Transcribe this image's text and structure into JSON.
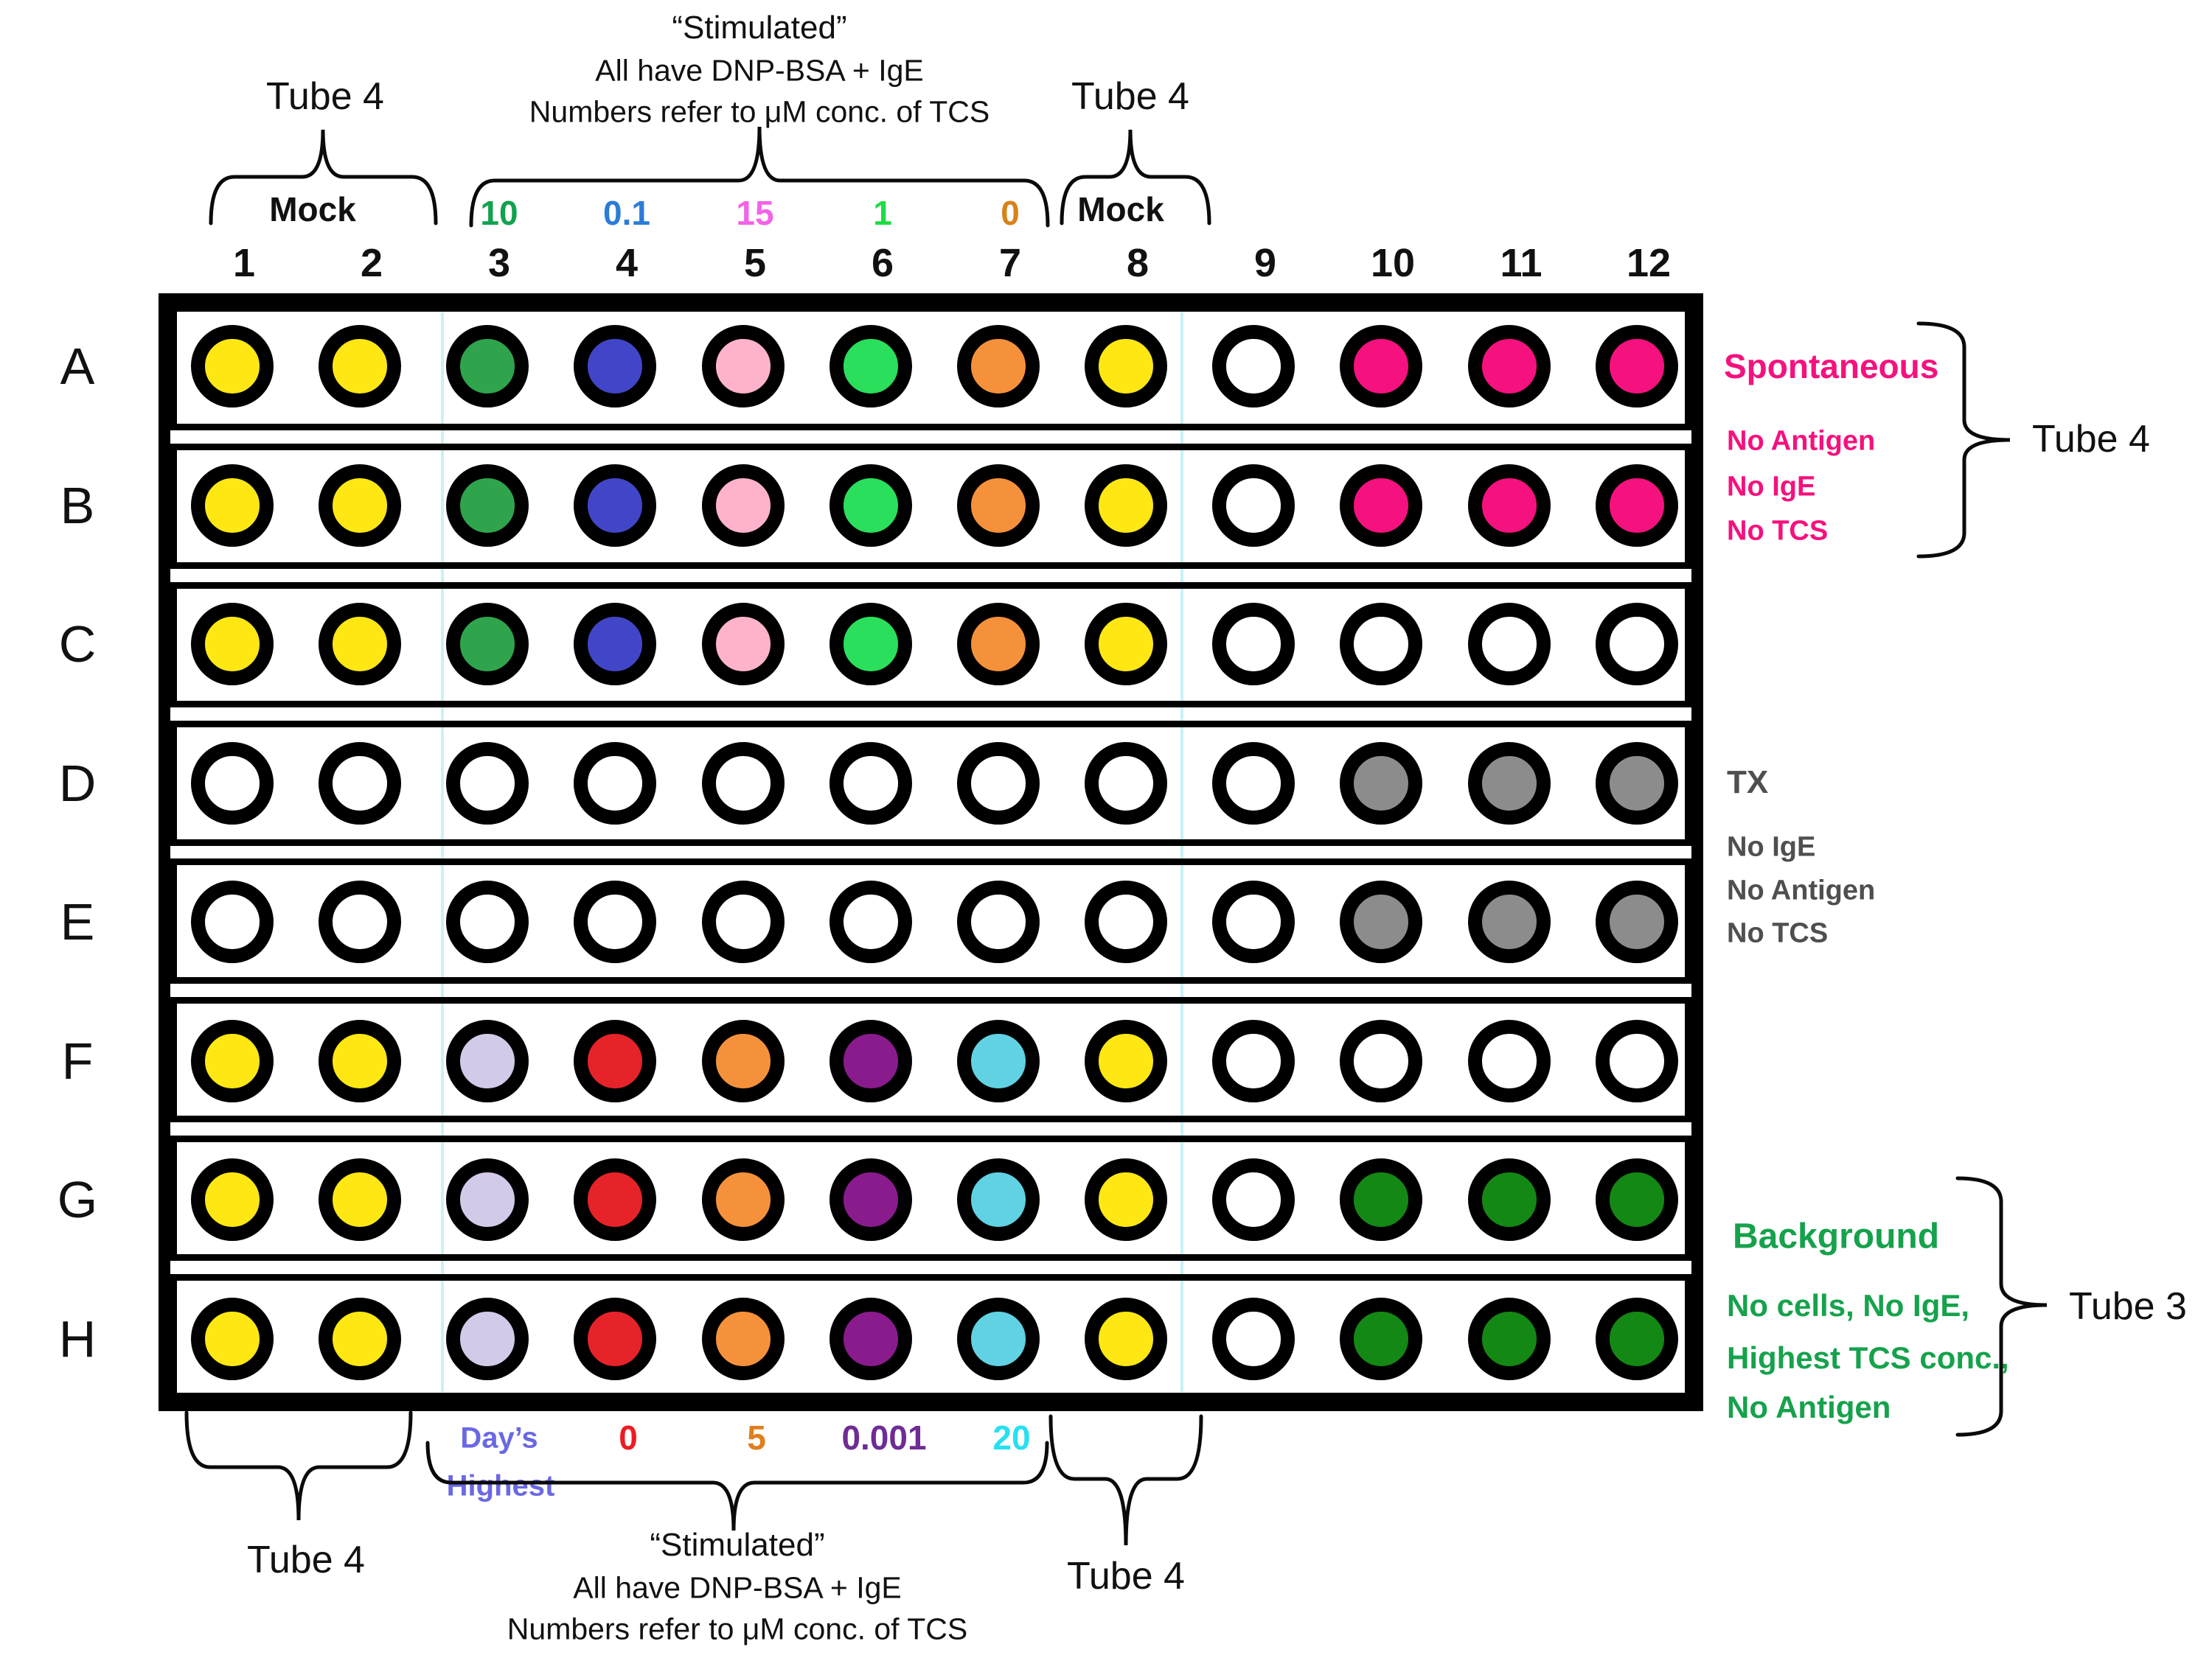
{
  "palette": {
    "yellow": "#FFE714",
    "green": "#2FA44D",
    "blue": "#4146C8",
    "pink": "#FFB3CB",
    "bright_green": "#2ADF5B",
    "orange": "#F6913B",
    "deep_pink": "#F5117E",
    "white": "#FFFFFF",
    "gray": "#8C8C8C",
    "lavender": "#D3CAEA",
    "red": "#E62328",
    "purple": "#8A1B8D",
    "cyan": "#60D2E3",
    "dark_green": "#148814"
  },
  "top": {
    "tube4_left": "Tube 4",
    "mock_left": "Mock",
    "stimulated": [
      "“Stimulated”",
      "All have DNP-BSA + IgE",
      "Numbers refer to μM conc. of TCS"
    ],
    "conc_labels": [
      {
        "text": "10",
        "color": "#12A24E"
      },
      {
        "text": "0.1",
        "color": "#2B7CD6"
      },
      {
        "text": "15",
        "color": "#F263E8"
      },
      {
        "text": "1",
        "color": "#1FDC46"
      },
      {
        "text": "0",
        "color": "#D98218"
      }
    ],
    "tube4_right": "Tube 4",
    "mock_right": "Mock",
    "column_numbers": [
      "1",
      "2",
      "3",
      "4",
      "5",
      "6",
      "7",
      "8",
      "9",
      "10",
      "11",
      "12"
    ]
  },
  "plate": {
    "row_labels": [
      "A",
      "B",
      "C",
      "D",
      "E",
      "F",
      "G",
      "H"
    ],
    "wells": [
      [
        "yellow",
        "yellow",
        "green",
        "blue",
        "pink",
        "bright_green",
        "orange",
        "yellow",
        "white",
        "deep_pink",
        "deep_pink",
        "deep_pink"
      ],
      [
        "yellow",
        "yellow",
        "green",
        "blue",
        "pink",
        "bright_green",
        "orange",
        "yellow",
        "white",
        "deep_pink",
        "deep_pink",
        "deep_pink"
      ],
      [
        "yellow",
        "yellow",
        "green",
        "blue",
        "pink",
        "bright_green",
        "orange",
        "yellow",
        "white",
        "white",
        "white",
        "white"
      ],
      [
        "white",
        "white",
        "white",
        "white",
        "white",
        "white",
        "white",
        "white",
        "white",
        "gray",
        "gray",
        "gray"
      ],
      [
        "white",
        "white",
        "white",
        "white",
        "white",
        "white",
        "white",
        "white",
        "white",
        "gray",
        "gray",
        "gray"
      ],
      [
        "yellow",
        "yellow",
        "lavender",
        "red",
        "orange",
        "purple",
        "cyan",
        "yellow",
        "white",
        "white",
        "white",
        "white"
      ],
      [
        "yellow",
        "yellow",
        "lavender",
        "red",
        "orange",
        "purple",
        "cyan",
        "yellow",
        "white",
        "dark_green",
        "dark_green",
        "dark_green"
      ],
      [
        "yellow",
        "yellow",
        "lavender",
        "red",
        "orange",
        "purple",
        "cyan",
        "yellow",
        "white",
        "dark_green",
        "dark_green",
        "dark_green"
      ]
    ]
  },
  "right": {
    "spontaneous_title": "Spontaneous",
    "spontaneous_lines": [
      "No Antigen",
      "No IgE",
      "No TCS"
    ],
    "spontaneous_color": "#F5117E",
    "spontaneous_tube": "Tube 4",
    "tx_title": "TX",
    "tx_lines": [
      "No IgE",
      "No Antigen",
      "No TCS"
    ],
    "tx_color": "#4F4F4F",
    "background_title": "Background",
    "background_lines": [
      "No cells, No IgE,",
      "Highest TCS conc.,",
      "No Antigen"
    ],
    "background_color": "#16A24C",
    "background_tube": "Tube 3"
  },
  "bottom": {
    "tube4_left": "Tube 4",
    "days_highest": [
      "Day’s",
      "Highest"
    ],
    "days_highest_color": "#6B68E4",
    "conc_labels": [
      {
        "text": "0",
        "color": "#ED1C24"
      },
      {
        "text": "5",
        "color": "#E07F1E"
      },
      {
        "text": "0.001",
        "color": "#6E2D95"
      },
      {
        "text": "20",
        "color": "#27E0F0"
      }
    ],
    "stimulated": [
      "“Stimulated”",
      "All have DNP-BSA + IgE",
      "Numbers refer to μM conc. of TCS"
    ],
    "tube4_right": "Tube 4"
  }
}
